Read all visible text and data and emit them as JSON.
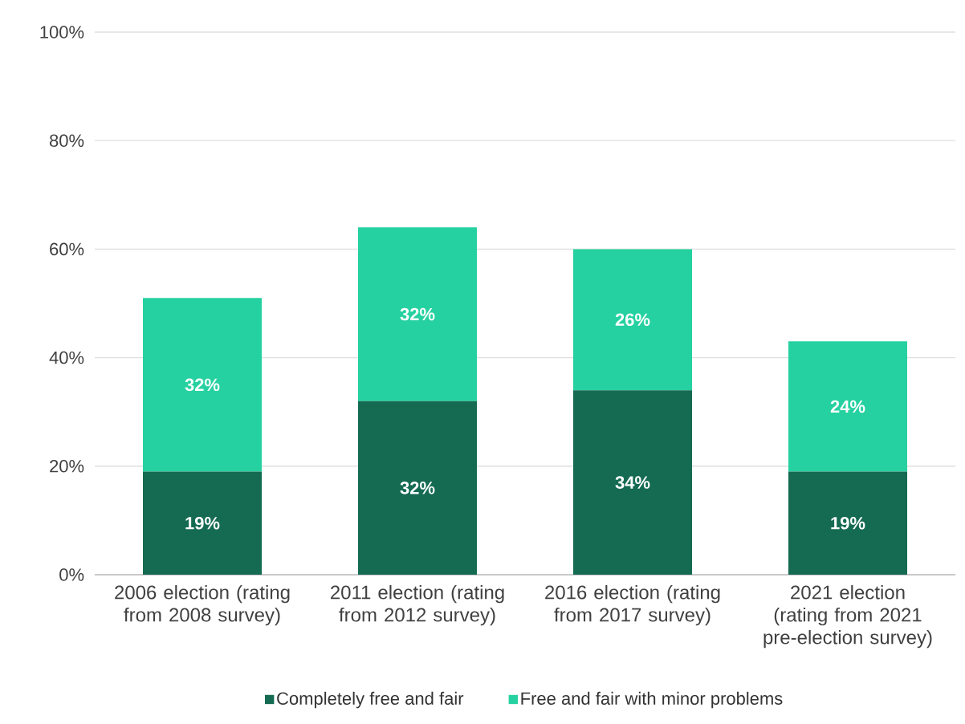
{
  "chart_data": {
    "type": "bar",
    "stacked": true,
    "categories": [
      "2006 election (rating from 2008 survey)",
      "2011 election (rating from 2012 survey)",
      "2016 election (rating from 2017 survey)",
      "2021 election (rating from 2021 pre-election survey)"
    ],
    "series": [
      {
        "name": "Completely free and fair",
        "color": "#156b52",
        "values": [
          19,
          32,
          34,
          19
        ],
        "value_labels": [
          "19%",
          "32%",
          "34%",
          "19%"
        ]
      },
      {
        "name": "Free and fair with minor problems",
        "color": "#25d1a0",
        "values": [
          32,
          32,
          26,
          24
        ],
        "value_labels": [
          "32%",
          "32%",
          "26%",
          "24%"
        ]
      }
    ],
    "ylim": [
      0,
      100
    ],
    "yticks": [
      {
        "value": 0,
        "label": "0%"
      },
      {
        "value": 20,
        "label": "20%"
      },
      {
        "value": 40,
        "label": "40%"
      },
      {
        "value": 60,
        "label": "60%"
      },
      {
        "value": 80,
        "label": "80%"
      },
      {
        "value": 100,
        "label": "100%"
      }
    ],
    "grid": "y",
    "legend": "bottom"
  }
}
